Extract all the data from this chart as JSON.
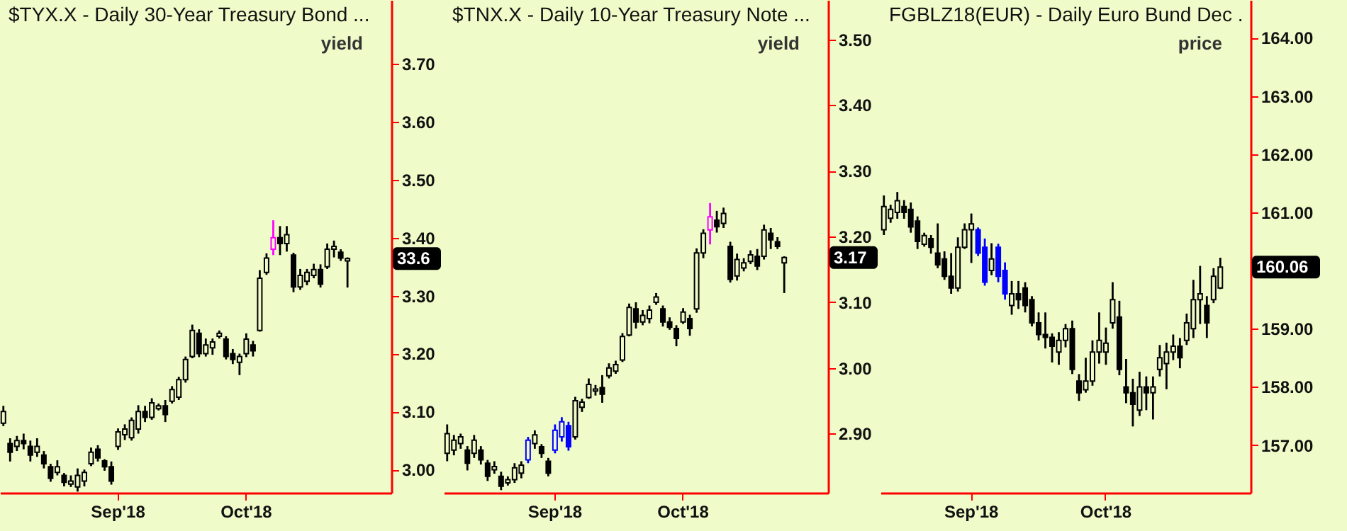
{
  "chart_data": [
    {
      "type": "candlestick",
      "title": "$TYX.X - Daily  30-Year Treasury Bond ...",
      "ylabel": "yield",
      "categories": [
        null,
        null,
        null,
        null,
        null,
        null,
        null,
        null,
        null,
        null,
        null,
        null,
        null,
        null,
        null,
        null,
        null,
        "Sep'18",
        null,
        null,
        null,
        null,
        null,
        null,
        null,
        null,
        null,
        null,
        null,
        null,
        null,
        null,
        null,
        null,
        null,
        null,
        "Oct'18",
        null,
        null,
        null,
        null,
        null,
        null,
        null,
        null,
        null,
        null,
        null,
        null,
        null,
        null,
        null,
        null,
        null,
        null,
        null,
        null,
        null
      ],
      "ohlc": [
        [
          3.08,
          3.11,
          3.075,
          3.1
        ],
        [
          3.045,
          3.054,
          3.014,
          3.03
        ],
        [
          3.04,
          3.058,
          3.032,
          3.05
        ],
        [
          3.05,
          3.062,
          3.035,
          3.045
        ],
        [
          3.04,
          3.05,
          3.014,
          3.025
        ],
        [
          3.03,
          3.054,
          3.022,
          3.04
        ],
        [
          3.025,
          3.032,
          3.002,
          3.01
        ],
        [
          3.005,
          3.01,
          2.979,
          2.985
        ],
        [
          2.995,
          3.016,
          2.99,
          3.005
        ],
        [
          2.99,
          2.994,
          2.971,
          2.978
        ],
        [
          2.975,
          2.99,
          2.97,
          2.98
        ],
        [
          2.97,
          3.002,
          2.962,
          2.99
        ],
        [
          2.98,
          3.0,
          2.971,
          2.995
        ],
        [
          3.01,
          3.038,
          3.006,
          3.03
        ],
        [
          3.035,
          3.042,
          3.014,
          3.02
        ],
        [
          3.015,
          3.018,
          2.998,
          3.005
        ],
        [
          3.005,
          3.014,
          2.974,
          2.98
        ],
        [
          3.04,
          3.071,
          3.034,
          3.065
        ],
        [
          3.06,
          3.078,
          3.051,
          3.07
        ],
        [
          3.055,
          3.09,
          3.05,
          3.085
        ],
        [
          3.07,
          3.111,
          3.062,
          3.1
        ],
        [
          3.1,
          3.11,
          3.082,
          3.09
        ],
        [
          3.09,
          3.123,
          3.086,
          3.115
        ],
        [
          3.105,
          3.114,
          3.102,
          3.11
        ],
        [
          3.11,
          3.12,
          3.082,
          3.095
        ],
        [
          3.118,
          3.144,
          3.114,
          3.138
        ],
        [
          3.125,
          3.16,
          3.12,
          3.155
        ],
        [
          3.155,
          3.195,
          3.15,
          3.19
        ],
        [
          3.195,
          3.25,
          3.192,
          3.24
        ],
        [
          3.235,
          3.242,
          3.194,
          3.2
        ],
        [
          3.2,
          3.226,
          3.195,
          3.215
        ],
        [
          3.21,
          3.226,
          3.198,
          3.22
        ],
        [
          3.23,
          3.24,
          3.226,
          3.235
        ],
        [
          3.225,
          3.23,
          3.19,
          3.195
        ],
        [
          3.2,
          3.208,
          3.182,
          3.19
        ],
        [
          3.185,
          3.2,
          3.163,
          3.195
        ],
        [
          3.2,
          3.235,
          3.194,
          3.225
        ],
        [
          3.215,
          3.222,
          3.195,
          3.205
        ],
        [
          3.24,
          3.344,
          3.238,
          3.33
        ],
        [
          3.34,
          3.373,
          3.336,
          3.365
        ],
        [
          3.38,
          3.43,
          3.37,
          3.4
        ],
        [
          3.4,
          3.42,
          3.37,
          3.39
        ],
        [
          3.39,
          3.42,
          3.376,
          3.405
        ],
        [
          3.37,
          3.374,
          3.306,
          3.315
        ],
        [
          3.315,
          3.346,
          3.31,
          3.335
        ],
        [
          3.325,
          3.346,
          3.318,
          3.34
        ],
        [
          3.335,
          3.355,
          3.33,
          3.345
        ],
        [
          3.345,
          3.354,
          3.314,
          3.32
        ],
        [
          3.35,
          3.39,
          3.346,
          3.38
        ],
        [
          3.38,
          3.395,
          3.366,
          3.385
        ],
        [
          3.375,
          3.38,
          3.36,
          3.365
        ],
        [
          3.36,
          3.366,
          3.314,
          3.364
        ],
        null,
        null,
        null,
        null,
        null,
        null
      ],
      "colors": [
        "#000000",
        "#000000",
        "#000000",
        "#000000",
        "#000000",
        "#000000",
        "#000000",
        "#000000",
        "#000000",
        "#000000",
        "#000000",
        "#000000",
        "#000000",
        "#000000",
        "#000000",
        "#000000",
        "#000000",
        "#000000",
        "#000000",
        "#000000",
        "#000000",
        "#000000",
        "#000000",
        "#000000",
        "#000000",
        "#000000",
        "#000000",
        "#000000",
        "#000000",
        "#000000",
        "#000000",
        "#000000",
        "#000000",
        "#000000",
        "#000000",
        "#000000",
        "#000000",
        "#000000",
        "#000000",
        "#000000",
        "#ff00ff",
        "#000000",
        "#000000",
        "#000000",
        "#000000",
        "#000000",
        "#000000",
        "#000000",
        "#000000",
        "#000000",
        "#000000",
        "#000000",
        null,
        null,
        null,
        null,
        null,
        null
      ],
      "ylim": [
        2.96,
        3.81
      ],
      "yticks": [
        {
          "value": 3.0,
          "label": "3.00"
        },
        {
          "value": 3.1,
          "label": "3.10"
        },
        {
          "value": 3.2,
          "label": "3.20"
        },
        {
          "value": 3.3,
          "label": "3.30"
        },
        {
          "value": 3.4,
          "label": "3.40"
        },
        {
          "value": 3.5,
          "label": "3.50"
        },
        {
          "value": 3.6,
          "label": "3.60"
        },
        {
          "value": 3.7,
          "label": "3.70"
        }
      ],
      "annotations": [
        "33.6"
      ]
    },
    {
      "type": "candlestick",
      "title": "$TNX.X - Daily  10-Year Treasury Note  ...",
      "ylabel": "yield",
      "categories": [
        null,
        null,
        null,
        null,
        null,
        null,
        null,
        null,
        null,
        null,
        null,
        null,
        null,
        null,
        null,
        null,
        "Sep'18",
        null,
        null,
        null,
        null,
        null,
        null,
        null,
        null,
        null,
        null,
        null,
        null,
        null,
        null,
        null,
        null,
        null,
        null,
        "Oct'18",
        null,
        null,
        null,
        null,
        null,
        null,
        null,
        null,
        null,
        null,
        null,
        null,
        null,
        null,
        null,
        null,
        null,
        null,
        null,
        null,
        null
      ],
      "ohlc": [
        [
          2.87,
          2.914,
          2.858,
          2.9
        ],
        [
          2.875,
          2.898,
          2.867,
          2.89
        ],
        [
          2.885,
          2.9,
          2.877,
          2.895
        ],
        [
          2.875,
          2.881,
          2.844,
          2.855
        ],
        [
          2.87,
          2.898,
          2.863,
          2.89
        ],
        [
          2.875,
          2.881,
          2.853,
          2.86
        ],
        [
          2.855,
          2.86,
          2.828,
          2.835
        ],
        [
          2.845,
          2.858,
          2.839,
          2.85
        ],
        [
          2.835,
          2.842,
          2.814,
          2.82
        ],
        [
          2.825,
          2.835,
          2.821,
          2.83
        ],
        [
          2.83,
          2.855,
          2.825,
          2.848
        ],
        [
          2.84,
          2.858,
          2.832,
          2.852
        ],
        [
          2.86,
          2.895,
          2.855,
          2.89
        ],
        [
          2.885,
          2.905,
          2.877,
          2.898
        ],
        [
          2.88,
          2.884,
          2.863,
          2.87
        ],
        [
          2.858,
          2.863,
          2.835,
          2.84
        ],
        [
          2.875,
          2.914,
          2.87,
          2.905
        ],
        [
          2.895,
          2.925,
          2.888,
          2.918
        ],
        [
          2.912,
          2.918,
          2.874,
          2.88
        ],
        [
          2.895,
          2.956,
          2.891,
          2.95
        ],
        [
          2.94,
          2.953,
          2.933,
          2.948
        ],
        [
          2.955,
          2.984,
          2.953,
          2.975
        ],
        [
          2.965,
          2.974,
          2.958,
          2.968
        ],
        [
          2.97,
          2.989,
          2.947,
          2.96
        ],
        [
          2.988,
          3.007,
          2.984,
          3.0
        ],
        [
          2.995,
          3.011,
          2.991,
          3.005
        ],
        [
          3.012,
          3.053,
          3.009,
          3.048
        ],
        [
          3.05,
          3.098,
          3.048,
          3.092
        ],
        [
          3.09,
          3.1,
          3.06,
          3.07
        ],
        [
          3.07,
          3.088,
          3.065,
          3.08
        ],
        [
          3.075,
          3.095,
          3.068,
          3.088
        ],
        [
          3.1,
          3.114,
          3.096,
          3.108
        ],
        [
          3.09,
          3.095,
          3.063,
          3.07
        ],
        [
          3.07,
          3.077,
          3.058,
          3.062
        ],
        [
          3.06,
          3.065,
          3.033,
          3.045
        ],
        [
          3.07,
          3.091,
          3.067,
          3.085
        ],
        [
          3.075,
          3.081,
          3.049,
          3.06
        ],
        [
          3.09,
          3.182,
          3.084,
          3.175
        ],
        [
          3.175,
          3.211,
          3.167,
          3.205
        ],
        [
          3.21,
          3.251,
          3.188,
          3.23
        ],
        [
          3.225,
          3.239,
          3.206,
          3.215
        ],
        [
          3.22,
          3.244,
          3.213,
          3.235
        ],
        [
          3.185,
          3.192,
          3.13,
          3.135
        ],
        [
          3.14,
          3.174,
          3.133,
          3.165
        ],
        [
          3.152,
          3.167,
          3.147,
          3.16
        ],
        [
          3.162,
          3.179,
          3.158,
          3.172
        ],
        [
          3.17,
          3.181,
          3.149,
          3.155
        ],
        [
          3.17,
          3.218,
          3.165,
          3.21
        ],
        [
          3.205,
          3.213,
          3.181,
          3.195
        ],
        [
          3.192,
          3.199,
          3.181,
          3.185
        ],
        [
          3.16,
          3.17,
          3.114,
          3.168
        ],
        null,
        null,
        null,
        null,
        null,
        null
      ],
      "colors": [
        "#000000",
        "#000000",
        "#000000",
        "#000000",
        "#000000",
        "#000000",
        "#000000",
        "#000000",
        "#000000",
        "#000000",
        "#000000",
        "#000000",
        "#0000ff",
        "#000000",
        "#000000",
        "#000000",
        "#0000ff",
        "#0000ff",
        "#0000ff",
        "#000000",
        "#000000",
        "#000000",
        "#000000",
        "#000000",
        "#000000",
        "#000000",
        "#000000",
        "#000000",
        "#000000",
        "#000000",
        "#000000",
        "#000000",
        "#000000",
        "#000000",
        "#000000",
        "#000000",
        "#000000",
        "#000000",
        "#000000",
        "#ff00ff",
        "#000000",
        "#000000",
        "#000000",
        "#000000",
        "#000000",
        "#000000",
        "#000000",
        "#000000",
        "#000000",
        "#000000",
        "#000000",
        null,
        null,
        null,
        null,
        null,
        null
      ],
      "ylim": [
        2.81,
        3.56
      ],
      "yticks": [
        {
          "value": 2.9,
          "label": "2.90"
        },
        {
          "value": 3.0,
          "label": "3.00"
        },
        {
          "value": 3.1,
          "label": "3.10"
        },
        {
          "value": 3.2,
          "label": "3.20"
        },
        {
          "value": 3.3,
          "label": "3.30"
        },
        {
          "value": 3.4,
          "label": "3.40"
        },
        {
          "value": 3.5,
          "label": "3.50"
        }
      ],
      "annotations": [
        "3.17"
      ]
    },
    {
      "type": "candlestick",
      "title": "FGBLZ18(EUR) - Daily  Euro Bund Dec  .",
      "ylabel": "price",
      "categories": [
        null,
        null,
        null,
        null,
        null,
        null,
        null,
        null,
        null,
        null,
        null,
        null,
        null,
        "Sep'18",
        null,
        null,
        null,
        null,
        null,
        null,
        null,
        null,
        null,
        null,
        null,
        null,
        null,
        null,
        null,
        null,
        null,
        null,
        null,
        "Oct'18",
        null,
        null,
        null,
        null,
        null,
        null,
        null,
        null,
        null,
        null,
        null,
        null,
        null,
        null,
        null,
        null,
        null,
        null,
        null,
        null,
        null
      ],
      "ohlc": [
        [
          160.7,
          161.29,
          160.61,
          161.1
        ],
        [
          160.9,
          161.13,
          160.82,
          161.05
        ],
        [
          161.0,
          161.35,
          160.89,
          161.2
        ],
        [
          161.1,
          161.21,
          160.89,
          161.0
        ],
        [
          161.05,
          161.17,
          160.65,
          160.75
        ],
        [
          160.85,
          160.93,
          160.37,
          160.5
        ],
        [
          160.45,
          160.65,
          160.41,
          160.6
        ],
        [
          160.55,
          160.61,
          160.29,
          160.4
        ],
        [
          160.3,
          160.81,
          160.04,
          160.1
        ],
        [
          160.2,
          160.33,
          159.84,
          159.9
        ],
        [
          159.9,
          160.3,
          159.6,
          159.7
        ],
        [
          159.7,
          160.57,
          159.64,
          160.4
        ],
        [
          160.4,
          160.81,
          160.37,
          160.7
        ],
        [
          160.7,
          160.98,
          160.13,
          160.8
        ],
        [
          160.7,
          160.74,
          160.25,
          160.3
        ],
        [
          160.4,
          160.55,
          159.74,
          159.8
        ],
        [
          160.0,
          160.47,
          159.92,
          160.2
        ],
        [
          160.4,
          160.46,
          159.8,
          159.9
        ],
        [
          160.0,
          160.14,
          159.5,
          159.6
        ],
        [
          159.4,
          159.82,
          159.24,
          159.6
        ],
        [
          159.6,
          159.82,
          159.34,
          159.5
        ],
        [
          159.7,
          159.8,
          159.28,
          159.4
        ],
        [
          159.5,
          159.56,
          159.04,
          159.1
        ],
        [
          159.1,
          159.28,
          158.8,
          158.9
        ],
        [
          158.9,
          159.28,
          158.66,
          158.85
        ],
        [
          158.85,
          158.92,
          158.42,
          158.7
        ],
        [
          158.6,
          158.94,
          158.38,
          158.8
        ],
        [
          158.8,
          159.08,
          158.68,
          159.0
        ],
        [
          159.0,
          159.14,
          158.22,
          158.3
        ],
        [
          158.1,
          158.22,
          157.76,
          157.9
        ],
        [
          157.95,
          158.5,
          157.9,
          158.1
        ],
        [
          158.1,
          158.8,
          158.02,
          158.6
        ],
        [
          158.6,
          159.28,
          158.4,
          158.8
        ],
        [
          158.6,
          159.02,
          158.38,
          158.75
        ],
        [
          159.1,
          159.8,
          159.0,
          159.5
        ],
        [
          159.2,
          159.48,
          158.2,
          158.3
        ],
        [
          158.0,
          158.48,
          157.72,
          157.9
        ],
        [
          157.9,
          158.14,
          157.32,
          157.7
        ],
        [
          157.6,
          158.26,
          157.5,
          158.0
        ],
        [
          158.0,
          158.18,
          157.6,
          157.9
        ],
        [
          157.9,
          158.18,
          157.44,
          158.0
        ],
        [
          158.3,
          158.72,
          158.18,
          158.5
        ],
        [
          158.4,
          158.76,
          157.96,
          158.6
        ],
        [
          158.6,
          158.9,
          158.46,
          158.7
        ],
        [
          158.7,
          158.84,
          158.32,
          158.5
        ],
        [
          158.8,
          159.26,
          158.72,
          159.1
        ],
        [
          159.0,
          159.84,
          158.84,
          159.5
        ],
        [
          159.5,
          160.08,
          159.08,
          159.6
        ],
        [
          159.4,
          159.56,
          158.84,
          159.1
        ],
        [
          159.5,
          160.04,
          159.44,
          159.9
        ],
        [
          159.7,
          160.22,
          159.68,
          160.06
        ],
        null,
        null,
        null,
        null
      ],
      "colors": [
        "#000000",
        "#000000",
        "#000000",
        "#000000",
        "#000000",
        "#000000",
        "#000000",
        "#000000",
        "#000000",
        "#000000",
        "#000000",
        "#000000",
        "#000000",
        "#000000",
        "#0000ff",
        "#0000ff",
        "#000000",
        "#0000ff",
        "#0000ff",
        "#000000",
        "#000000",
        "#000000",
        "#000000",
        "#000000",
        "#000000",
        "#000000",
        "#000000",
        "#000000",
        "#000000",
        "#000000",
        "#000000",
        "#000000",
        "#000000",
        "#000000",
        "#000000",
        "#000000",
        "#000000",
        "#000000",
        "#000000",
        "#000000",
        "#000000",
        "#000000",
        "#000000",
        "#000000",
        "#000000",
        "#000000",
        "#000000",
        "#000000",
        "#000000",
        "#000000",
        "#000000",
        null,
        null,
        null,
        null
      ],
      "ylim": [
        156.18,
        164.65
      ],
      "yticks": [
        {
          "value": 157,
          "label": "157.00"
        },
        {
          "value": 158,
          "label": "158.00"
        },
        {
          "value": 159,
          "label": "159.00"
        },
        {
          "value": 161,
          "label": "161.00"
        },
        {
          "value": 162,
          "label": "162.00"
        },
        {
          "value": 163,
          "label": "163.00"
        },
        {
          "value": 164,
          "label": "164.00"
        }
      ],
      "annotations": [
        "160.06"
      ]
    }
  ]
}
